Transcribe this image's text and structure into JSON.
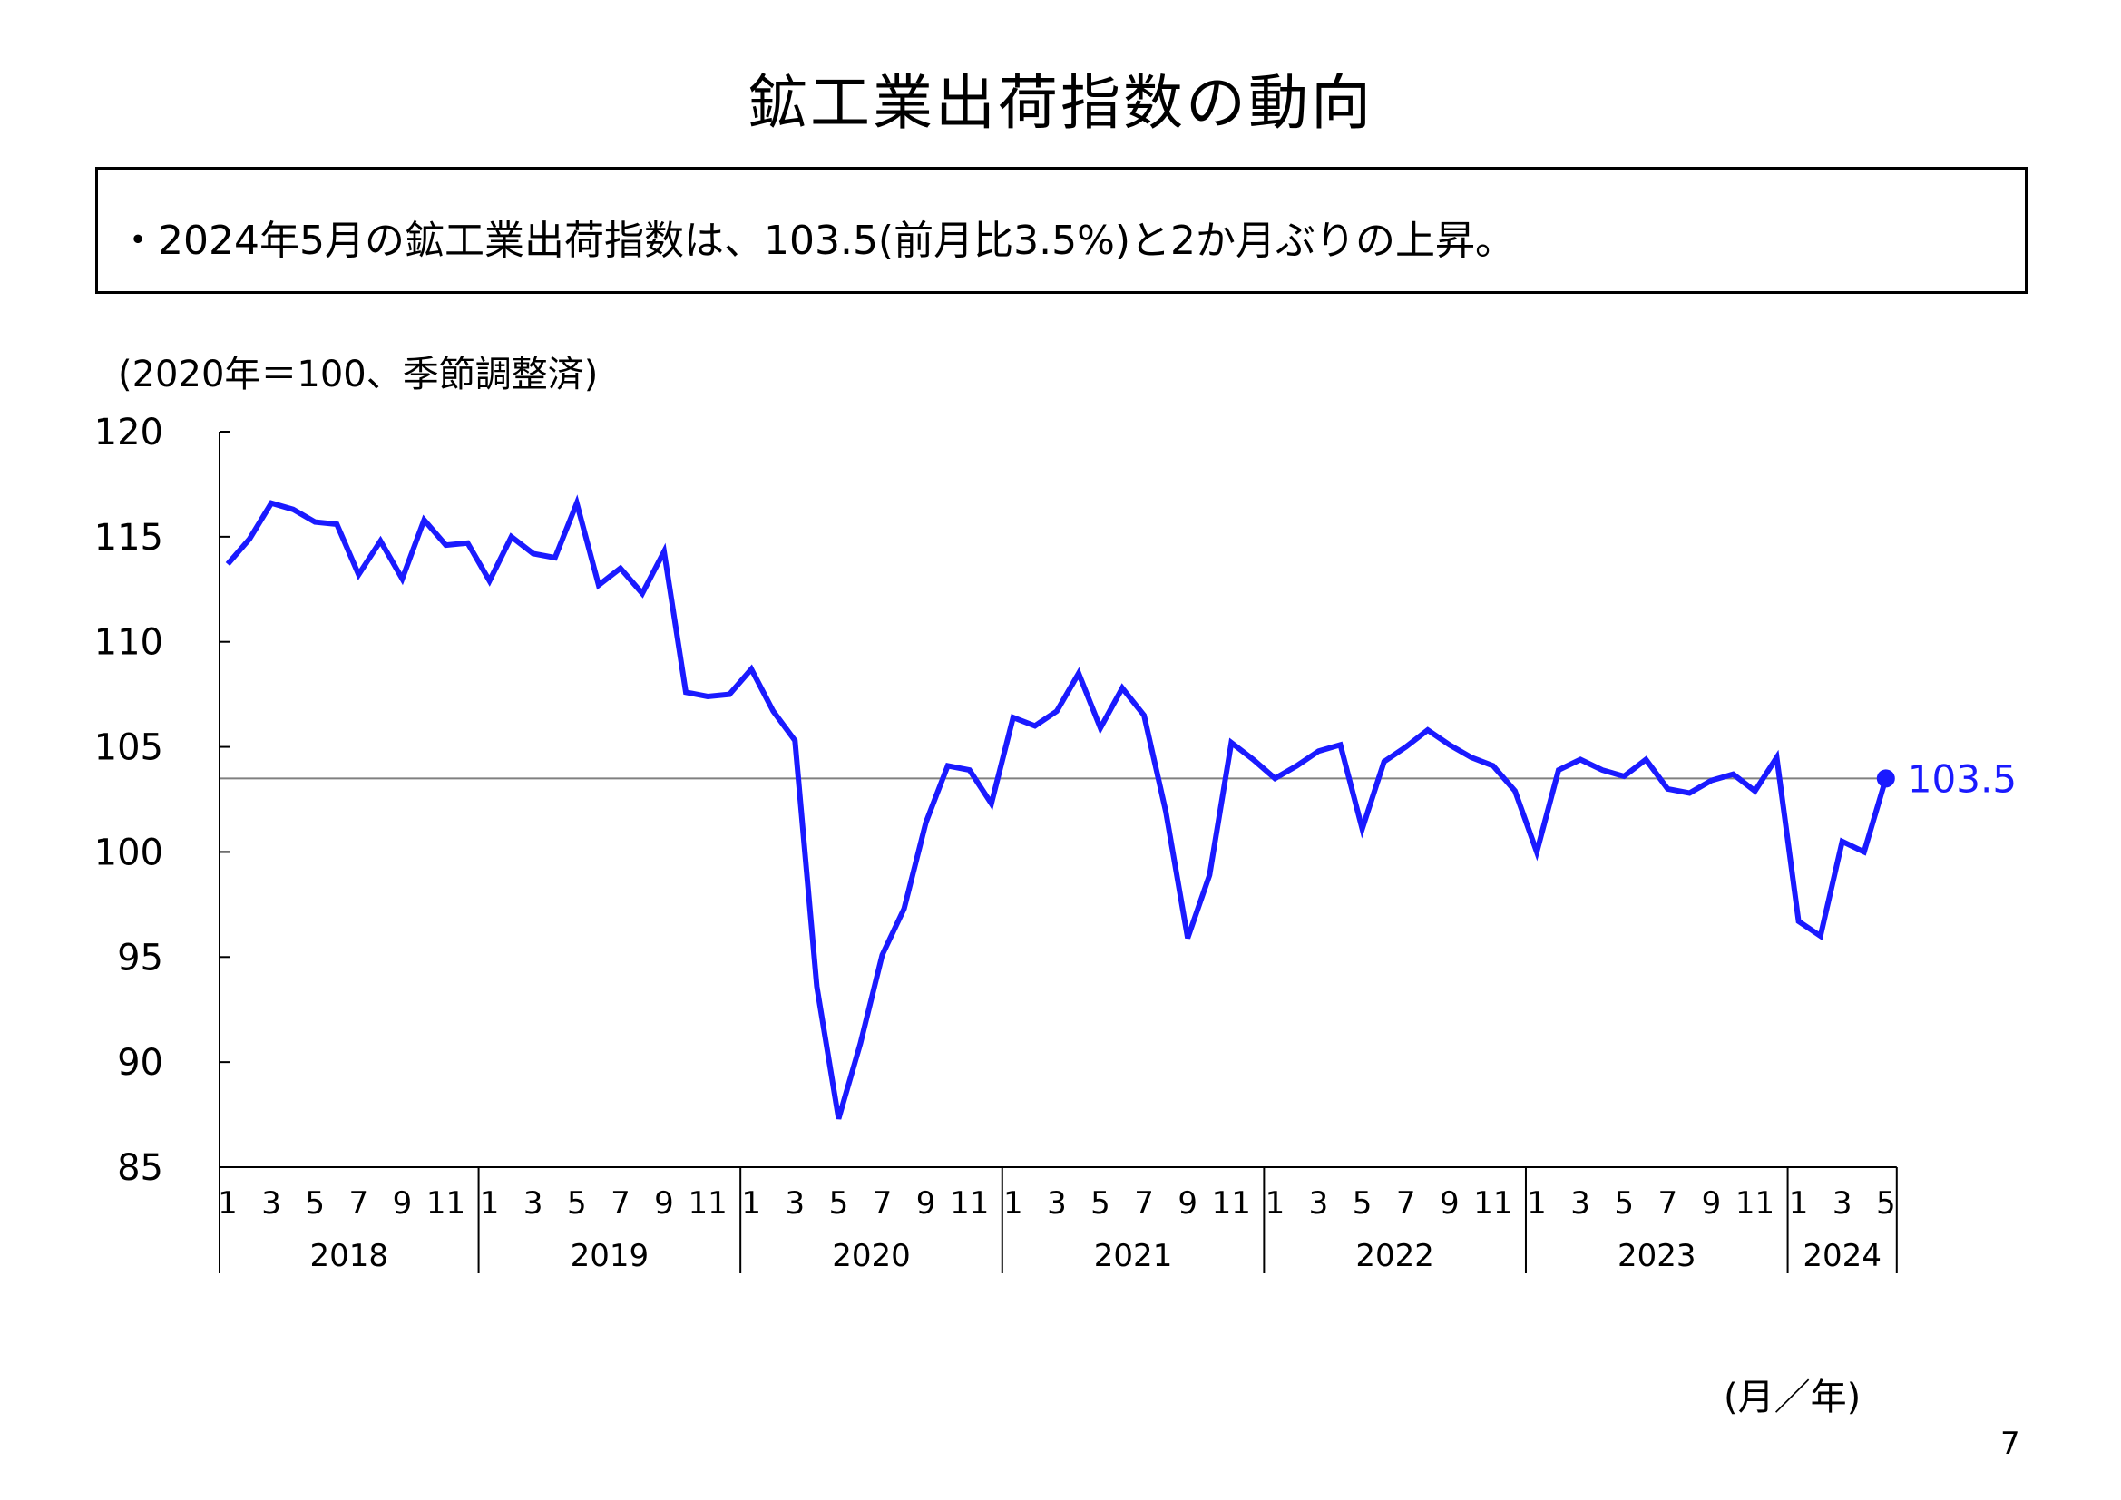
{
  "title": "鉱工業出荷指数の動向",
  "summary": "・2024年5月の鉱工業出荷指数は、103.5(前月比3.5%)と2か月ぶりの上昇。",
  "unit_note": "(2020年＝100、季節調整済)",
  "axis_note": "(月／年)",
  "page_number": "7",
  "colors": {
    "series": "#1a1aff",
    "reference_line": "#808080",
    "axes": "#000000"
  },
  "chart_data": {
    "type": "line",
    "ylim": [
      85,
      120
    ],
    "yticks": [
      85,
      90,
      95,
      100,
      105,
      110,
      115,
      120
    ],
    "grid": false,
    "month_tick_labels": [
      "1",
      "3",
      "5",
      "7",
      "9",
      "11"
    ],
    "years": [
      {
        "label": "2018",
        "months": 12
      },
      {
        "label": "2019",
        "months": 12
      },
      {
        "label": "2020",
        "months": 12
      },
      {
        "label": "2021",
        "months": 12
      },
      {
        "label": "2022",
        "months": 12
      },
      {
        "label": "2023",
        "months": 12
      },
      {
        "label": "2024",
        "months": 5
      }
    ],
    "series": [
      {
        "values": [
          113.7,
          114.9,
          116.6,
          116.3,
          115.7,
          115.6,
          113.2,
          114.8,
          113.0,
          115.8,
          114.6,
          114.7,
          112.9,
          115.0,
          114.2,
          114.0,
          116.6,
          112.7,
          113.5,
          112.3,
          114.3,
          107.6,
          107.4,
          107.5,
          108.7,
          106.7,
          105.3,
          93.6,
          87.3,
          90.9,
          95.1,
          97.3,
          101.4,
          104.1,
          103.9,
          102.3,
          106.4,
          106.0,
          106.7,
          108.5,
          105.9,
          107.8,
          106.5,
          101.9,
          95.9,
          98.9,
          105.2,
          104.4,
          103.5,
          104.1,
          104.8,
          105.1,
          101.1,
          104.3,
          105.0,
          105.8,
          105.1,
          104.5,
          104.1,
          102.9,
          100.0,
          103.9,
          104.4,
          103.9,
          103.6,
          104.4,
          103.0,
          102.8,
          103.4,
          103.7,
          102.9,
          104.5,
          96.7,
          96.0,
          100.5,
          100.0,
          103.5
        ]
      }
    ],
    "reference_value": 103.5,
    "last_value_label": "103.5"
  }
}
